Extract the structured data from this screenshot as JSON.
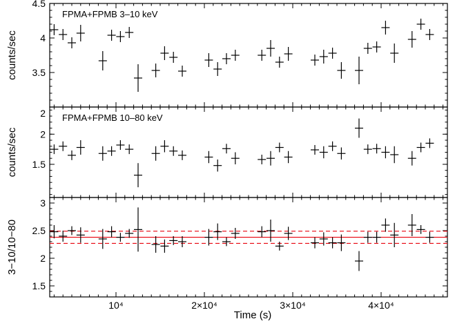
{
  "chart_data": [
    {
      "type": "scatter",
      "title": "",
      "annotation": "FPMA+FPMB 3–10 keV",
      "ylabel": "counts/sec",
      "xlim": [
        2500,
        47500
      ],
      "ylim": [
        3.0,
        4.5
      ],
      "yticks": [
        3.5,
        4.0,
        4.5
      ],
      "ytick_labels": [
        "3.5",
        "4",
        "4.5"
      ],
      "xticks": [
        10000,
        20000,
        30000,
        40000
      ],
      "x": [
        3000,
        4000,
        5000,
        6000,
        8500,
        9500,
        10500,
        11500,
        12500,
        14500,
        15500,
        16500,
        17500,
        20500,
        21500,
        22500,
        23500,
        26500,
        27500,
        28500,
        29500,
        32500,
        33500,
        34500,
        35500,
        37500,
        38500,
        39500,
        40500,
        41500,
        43500,
        44500,
        45500
      ],
      "y": [
        4.12,
        4.05,
        3.93,
        4.07,
        3.67,
        4.04,
        4.02,
        4.08,
        3.42,
        3.53,
        3.78,
        3.72,
        3.52,
        3.68,
        3.55,
        3.7,
        3.75,
        3.75,
        3.85,
        3.65,
        3.77,
        3.68,
        3.73,
        3.78,
        3.53,
        3.53,
        3.85,
        3.87,
        4.15,
        3.78,
        3.98,
        4.2,
        4.05
      ],
      "yerr": [
        0.08,
        0.08,
        0.08,
        0.12,
        0.14,
        0.08,
        0.08,
        0.08,
        0.2,
        0.1,
        0.1,
        0.08,
        0.08,
        0.1,
        0.1,
        0.08,
        0.08,
        0.08,
        0.12,
        0.08,
        0.1,
        0.08,
        0.1,
        0.08,
        0.12,
        0.2,
        0.08,
        0.08,
        0.1,
        0.14,
        0.12,
        0.08,
        0.08
      ]
    },
    {
      "type": "scatter",
      "title": "",
      "annotation": "FPMA+FPMB 10–80 keV",
      "ylabel": "counts/sec",
      "xlim": [
        2500,
        47500
      ],
      "ylim": [
        0.95,
        2.45
      ],
      "yticks": [
        1.5,
        2.0
      ],
      "ytick_labels": [
        "1.5",
        "2"
      ],
      "top_tick_label": "2",
      "xticks": [
        10000,
        20000,
        30000,
        40000
      ],
      "x": [
        3000,
        4000,
        5000,
        6000,
        8500,
        9500,
        10500,
        11500,
        12500,
        14500,
        15500,
        16500,
        17500,
        20500,
        21500,
        22500,
        23500,
        26500,
        27500,
        28500,
        29500,
        32500,
        33500,
        34500,
        35500,
        37500,
        38500,
        39500,
        40500,
        41500,
        43500,
        44500,
        45500
      ],
      "y": [
        1.75,
        1.8,
        1.65,
        1.78,
        1.68,
        1.72,
        1.82,
        1.75,
        1.32,
        1.68,
        1.8,
        1.72,
        1.65,
        1.62,
        1.48,
        1.76,
        1.6,
        1.58,
        1.6,
        1.78,
        1.62,
        1.74,
        1.7,
        1.8,
        1.68,
        2.1,
        1.75,
        1.76,
        1.7,
        1.66,
        1.6,
        1.78,
        1.85
      ],
      "yerr": [
        0.08,
        0.08,
        0.08,
        0.12,
        0.12,
        0.08,
        0.08,
        0.08,
        0.2,
        0.12,
        0.1,
        0.08,
        0.08,
        0.1,
        0.1,
        0.08,
        0.1,
        0.08,
        0.12,
        0.08,
        0.1,
        0.08,
        0.1,
        0.08,
        0.1,
        0.16,
        0.08,
        0.08,
        0.1,
        0.14,
        0.12,
        0.08,
        0.08
      ]
    },
    {
      "type": "scatter",
      "title": "",
      "ylabel": "3−10/10−80",
      "xlabel": "Time (s)",
      "xlim": [
        2500,
        47500
      ],
      "ylim": [
        1.3,
        3.1
      ],
      "yticks": [
        1.5,
        2.0,
        2.5,
        3.0
      ],
      "ytick_labels": [
        "1.5",
        "2",
        "2.5",
        "3"
      ],
      "xticks": [
        10000,
        20000,
        30000,
        40000
      ],
      "xtick_labels": [
        "10⁴",
        "2×10⁴",
        "3×10⁴",
        "4×10⁴"
      ],
      "mean_line": 2.38,
      "mean_band": [
        2.27,
        2.49
      ],
      "x": [
        3000,
        4000,
        5000,
        6000,
        8500,
        9500,
        10500,
        11500,
        12500,
        14500,
        15500,
        16500,
        17500,
        20500,
        21500,
        22500,
        23500,
        26500,
        27500,
        28500,
        29500,
        32500,
        33500,
        34500,
        35500,
        37500,
        38500,
        39500,
        40500,
        41500,
        43500,
        44500,
        45500
      ],
      "y": [
        2.48,
        2.4,
        2.5,
        2.42,
        2.35,
        2.48,
        2.38,
        2.45,
        2.52,
        2.25,
        2.22,
        2.32,
        2.3,
        2.38,
        2.48,
        2.3,
        2.45,
        2.48,
        2.5,
        2.22,
        2.45,
        2.28,
        2.35,
        2.28,
        2.28,
        1.95,
        2.38,
        2.38,
        2.6,
        2.42,
        2.6,
        2.52,
        2.38
      ],
      "yerr": [
        0.12,
        0.1,
        0.08,
        0.14,
        0.18,
        0.1,
        0.08,
        0.08,
        0.4,
        0.15,
        0.12,
        0.08,
        0.1,
        0.15,
        0.15,
        0.08,
        0.1,
        0.1,
        0.2,
        0.08,
        0.12,
        0.1,
        0.12,
        0.1,
        0.15,
        0.18,
        0.1,
        0.1,
        0.12,
        0.22,
        0.2,
        0.08,
        0.1
      ]
    }
  ]
}
